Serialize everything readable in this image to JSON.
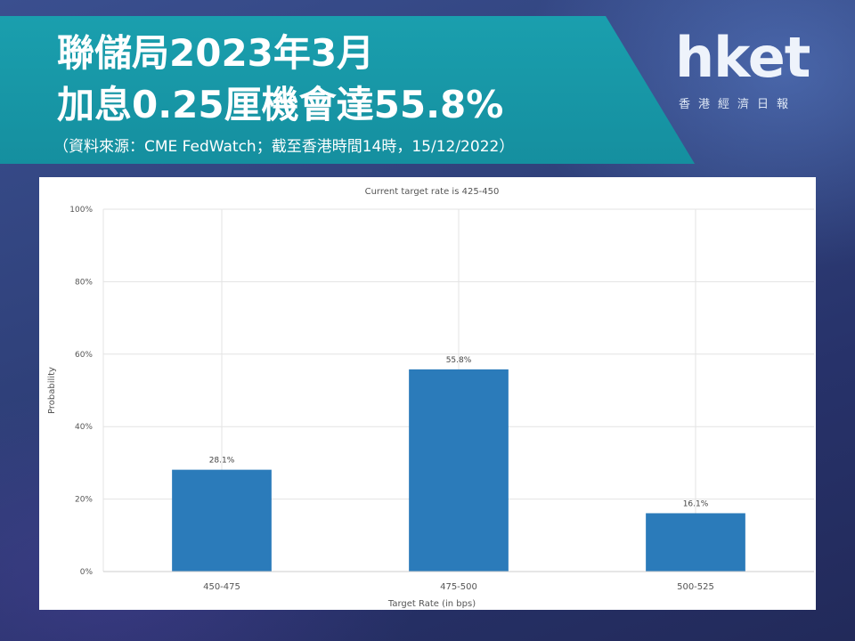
{
  "header": {
    "title_line1": "聯儲局2023年3月",
    "title_line2": "加息0.25厘機會達55.8%",
    "source": "（資料來源：CME FedWatch；截至香港時間14時，15/12/2022）"
  },
  "logo": {
    "word": "hket",
    "tagline": "香港經濟日報"
  },
  "colors": {
    "banner": "#1a9fae",
    "bar": "#2b7bba",
    "grid": "#e3e3e3"
  },
  "chart_data": {
    "type": "bar",
    "title": "Current target rate is 425-450",
    "xlabel": "Target Rate (in bps)",
    "ylabel": "Probability",
    "categories": [
      "450-475",
      "475-500",
      "500-525"
    ],
    "values": [
      28.1,
      55.8,
      16.1
    ],
    "data_labels": [
      "28.1%",
      "55.8%",
      "16.1%"
    ],
    "ylim": [
      0,
      100
    ],
    "yticks": [
      0,
      20,
      40,
      60,
      80,
      100
    ],
    "ytick_labels": [
      "0%",
      "20%",
      "40%",
      "60%",
      "80%",
      "100%"
    ],
    "grid": true,
    "legend": "none"
  }
}
